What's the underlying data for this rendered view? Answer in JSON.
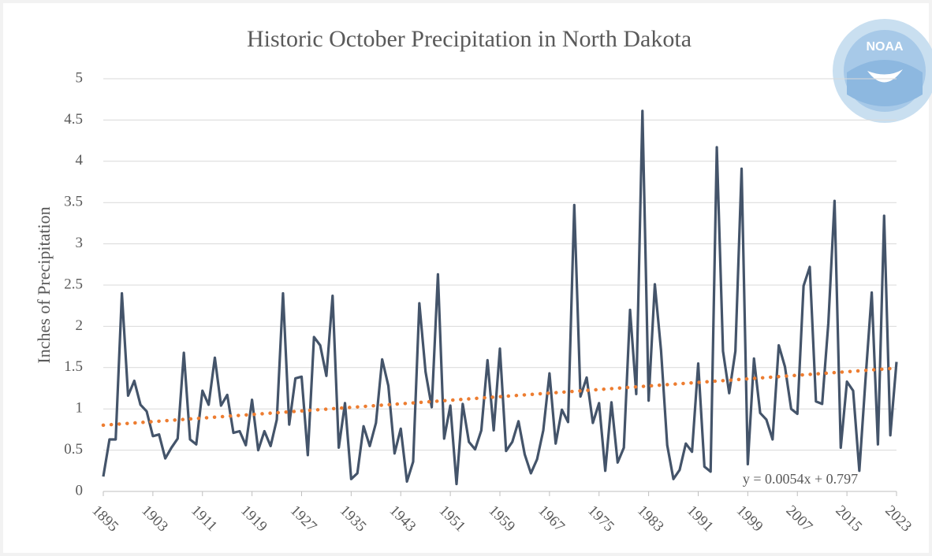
{
  "chart_data": {
    "type": "line",
    "title": "Historic October Precipitation in North Dakota",
    "y_label": "Inches of Precipitation",
    "logo_text": "NOAA",
    "color": "#44546a",
    "grid": true,
    "x": [
      1895,
      1896,
      1897,
      1898,
      1899,
      1900,
      1901,
      1902,
      1903,
      1904,
      1905,
      1906,
      1907,
      1908,
      1909,
      1910,
      1911,
      1912,
      1913,
      1914,
      1915,
      1916,
      1917,
      1918,
      1919,
      1920,
      1921,
      1922,
      1923,
      1924,
      1925,
      1926,
      1927,
      1928,
      1929,
      1930,
      1931,
      1932,
      1933,
      1934,
      1935,
      1936,
      1937,
      1938,
      1939,
      1940,
      1941,
      1942,
      1943,
      1944,
      1945,
      1946,
      1947,
      1948,
      1949,
      1950,
      1951,
      1952,
      1953,
      1954,
      1955,
      1956,
      1957,
      1958,
      1959,
      1960,
      1961,
      1962,
      1963,
      1964,
      1965,
      1966,
      1967,
      1968,
      1969,
      1970,
      1971,
      1972,
      1973,
      1974,
      1975,
      1976,
      1977,
      1978,
      1979,
      1980,
      1981,
      1982,
      1983,
      1984,
      1985,
      1986,
      1987,
      1988,
      1989,
      1990,
      1991,
      1992,
      1993,
      1994,
      1995,
      1996,
      1997,
      1998,
      1999,
      2000,
      2001,
      2002,
      2003,
      2004,
      2005,
      2006,
      2007,
      2008,
      2009,
      2010,
      2011,
      2012,
      2013,
      2014,
      2015,
      2016,
      2017,
      2018,
      2019,
      2020,
      2021,
      2022,
      2023
    ],
    "values": [
      0.18,
      0.63,
      0.63,
      2.4,
      1.16,
      1.34,
      1.05,
      0.97,
      0.67,
      0.69,
      0.4,
      0.53,
      0.64,
      1.68,
      0.63,
      0.57,
      1.22,
      1.05,
      1.62,
      1.04,
      1.17,
      0.71,
      0.73,
      0.56,
      1.11,
      0.5,
      0.73,
      0.55,
      0.87,
      2.4,
      0.81,
      1.37,
      1.39,
      0.44,
      1.87,
      1.77,
      1.4,
      2.37,
      0.53,
      1.07,
      0.15,
      0.22,
      0.79,
      0.55,
      0.83,
      1.6,
      1.28,
      0.46,
      0.76,
      0.12,
      0.36,
      2.28,
      1.45,
      1.02,
      2.63,
      0.64,
      1.04,
      0.09,
      1.06,
      0.6,
      0.51,
      0.74,
      1.59,
      0.74,
      1.73,
      0.49,
      0.6,
      0.85,
      0.45,
      0.22,
      0.39,
      0.74,
      1.43,
      0.58,
      0.99,
      0.84,
      3.47,
      1.15,
      1.38,
      0.83,
      1.07,
      0.25,
      1.08,
      0.35,
      0.53,
      2.2,
      1.18,
      4.61,
      1.1,
      2.51,
      1.71,
      0.56,
      0.15,
      0.26,
      0.58,
      0.48,
      1.55,
      0.3,
      0.24,
      4.17,
      1.7,
      1.19,
      1.7,
      3.91,
      0.33,
      1.61,
      0.95,
      0.87,
      0.63,
      1.77,
      1.51,
      1.0,
      0.94,
      2.49,
      2.72,
      1.09,
      1.06,
      2.04,
      3.52,
      0.53,
      1.33,
      1.22,
      0.25,
      1.36,
      2.41,
      0.57,
      3.34,
      0.68,
      1.57
    ],
    "xlim": [
      1895,
      2023
    ],
    "xticks": [
      1895,
      1903,
      1911,
      1919,
      1927,
      1935,
      1943,
      1951,
      1959,
      1967,
      1975,
      1983,
      1991,
      1999,
      2007,
      2015,
      2023
    ],
    "ylim": [
      0,
      5
    ],
    "yticks": [
      0,
      0.5,
      1,
      1.5,
      2,
      2.5,
      3,
      3.5,
      4,
      4.5,
      5
    ],
    "trendline": {
      "label": "y = 0.0054x + 0.797",
      "slope": 0.0054,
      "intercept": 0.797,
      "color": "#ed7d31"
    }
  }
}
